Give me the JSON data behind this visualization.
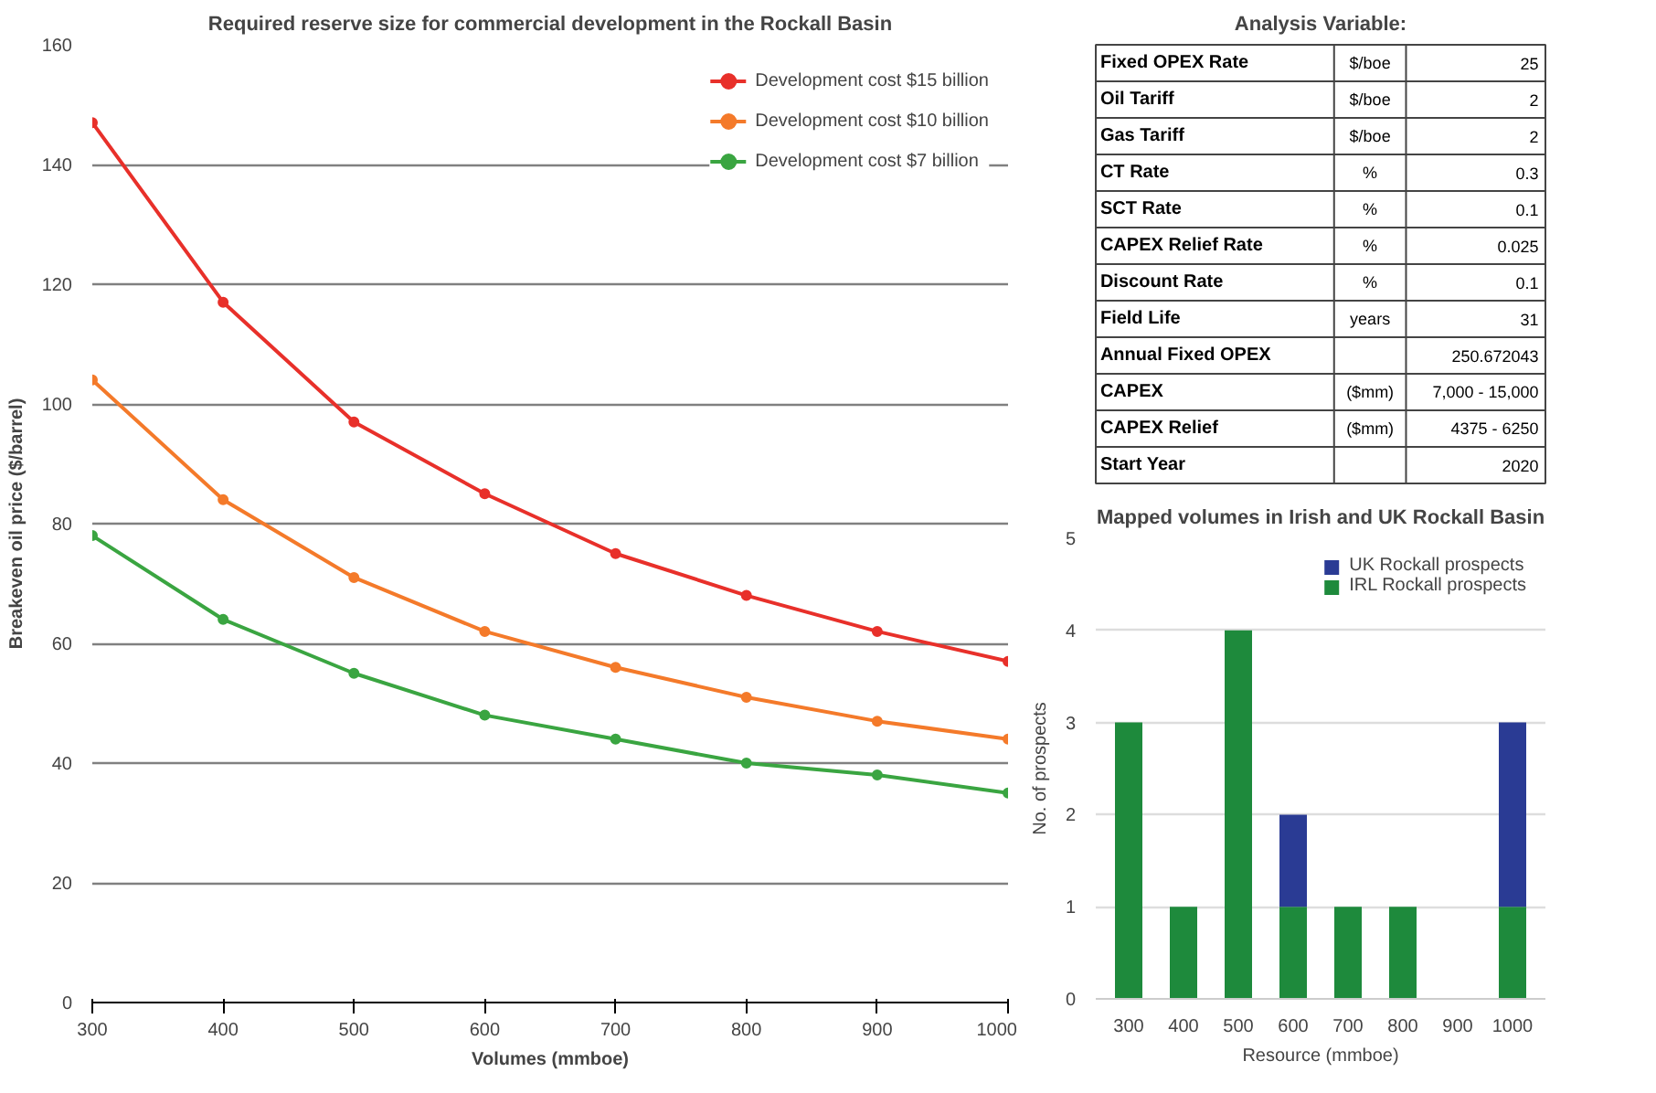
{
  "chart_data": [
    {
      "type": "line",
      "title": "Required reserve size for commercial development in the Rockall Basin",
      "xlabel": "Volumes (mmboe)",
      "ylabel": "Breakeven oil price ($/barrel)",
      "x": [
        300,
        400,
        500,
        600,
        700,
        800,
        900,
        1000
      ],
      "series": [
        {
          "name": "Development cost $15 billion",
          "color": "#e8302a",
          "values": [
            147,
            117,
            97,
            85,
            75,
            68,
            62,
            57
          ]
        },
        {
          "name": "Development cost $10 billion",
          "color": "#f47a2a",
          "values": [
            104,
            84,
            71,
            62,
            56,
            51,
            47,
            44
          ]
        },
        {
          "name": "Development cost $7 billion",
          "color": "#3aa541",
          "values": [
            78,
            64,
            55,
            48,
            44,
            40,
            38,
            35
          ]
        }
      ],
      "xlim": [
        300,
        1000
      ],
      "xticks": [
        300,
        400,
        500,
        600,
        700,
        800,
        900,
        1000
      ],
      "ylim": [
        0,
        160
      ],
      "yticks": [
        0,
        20,
        40,
        60,
        80,
        100,
        120,
        140,
        160
      ],
      "grid": "y",
      "legend": "top right",
      "marker": "circle",
      "line_style": "solid"
    },
    {
      "type": "other",
      "title": "Analysis Variable:",
      "y_categories": [
        "Fixed OPEX Rate",
        "Oil Tariff",
        "Gas Tariff",
        "CT Rate",
        "SCT Rate",
        "CAPEX Relief Rate",
        "Discount Rate",
        "Field Life",
        "Annual Fixed OPEX",
        "CAPEX",
        "CAPEX Relief",
        "Start Year"
      ],
      "cell_labels": [
        [
          "$/boe",
          "25"
        ],
        [
          "$/boe",
          "2"
        ],
        [
          "$/boe",
          "2"
        ],
        [
          "%",
          "0.3"
        ],
        [
          "%",
          "0.1"
        ],
        [
          "%",
          "0.025"
        ],
        [
          "%",
          "0.1"
        ],
        [
          "years",
          "31"
        ],
        [
          null,
          "250.672043"
        ],
        [
          "($mm)",
          "7,000 - 15,000"
        ],
        [
          "($mm)",
          "4375 - 6250"
        ],
        [
          null,
          "2020"
        ]
      ]
    },
    {
      "type": "bar",
      "title": "Mapped volumes in Irish and UK Rockall Basin",
      "xlabel": "Resource (mmboe)",
      "ylabel": "No. of prospects",
      "stacked": true,
      "categories": [
        "300",
        "400",
        "500",
        "600",
        "700",
        "800",
        "900",
        "1000"
      ],
      "series": [
        {
          "name": "IRL Rockall prospects",
          "color": "#1e8a3c",
          "values": [
            3,
            1,
            4,
            1,
            1,
            1,
            0,
            1
          ]
        },
        {
          "name": "UK Rockall prospects",
          "color": "#2a3b94",
          "values": [
            0,
            0,
            0,
            1,
            0,
            0,
            0,
            2
          ]
        }
      ],
      "ylim": [
        0,
        5
      ],
      "yticks": [
        0,
        1,
        2,
        3,
        4,
        5
      ],
      "grid": "y",
      "legend": "top right"
    }
  ]
}
